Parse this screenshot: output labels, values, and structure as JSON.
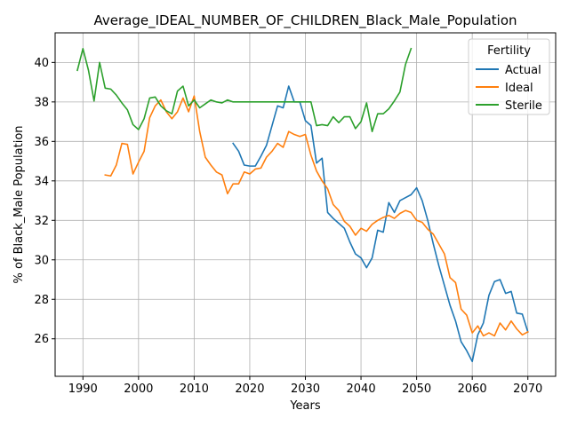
{
  "chart_data": {
    "type": "line",
    "title": "Average_IDEAL_NUMBER_OF_CHILDREN_Black_Male_Population",
    "xlabel": "Years",
    "ylabel": "% of Black_Male Population",
    "xlim": [
      1985,
      2075
    ],
    "ylim": [
      24.1,
      41.5
    ],
    "xticks": [
      1990,
      2000,
      2010,
      2020,
      2030,
      2040,
      2050,
      2060,
      2070
    ],
    "yticks": [
      26,
      28,
      30,
      32,
      34,
      36,
      38,
      40
    ],
    "grid": true,
    "legend": {
      "title": "Fertility",
      "placement": "top-right"
    },
    "series": [
      {
        "name": "Actual",
        "color": "#1f77b4",
        "x": [
          2017,
          2018,
          2019,
          2020,
          2021,
          2022,
          2023,
          2024,
          2025,
          2026,
          2027,
          2028,
          2029,
          2030,
          2031,
          2032,
          2033,
          2034,
          2035,
          2036,
          2037,
          2038,
          2039,
          2040,
          2041,
          2042,
          2043,
          2044,
          2045,
          2046,
          2047,
          2048,
          2049,
          2050,
          2051,
          2052,
          2053,
          2054,
          2055,
          2056,
          2057,
          2058,
          2059,
          2060,
          2061,
          2062,
          2063,
          2064,
          2065,
          2066,
          2067,
          2068,
          2069,
          2070
        ],
        "y": [
          35.9,
          35.5,
          34.8,
          34.75,
          34.75,
          35.25,
          35.8,
          36.8,
          37.8,
          37.7,
          38.8,
          38.0,
          38.0,
          37.05,
          36.8,
          34.9,
          35.15,
          32.4,
          32.1,
          31.85,
          31.6,
          30.9,
          30.3,
          30.1,
          29.6,
          30.1,
          31.5,
          31.4,
          32.9,
          32.4,
          33.0,
          33.15,
          33.3,
          33.65,
          33.0,
          32.0,
          30.8,
          29.7,
          28.7,
          27.7,
          26.9,
          25.85,
          25.4,
          24.85,
          26.2,
          26.8,
          28.2,
          28.9,
          29.0,
          28.3,
          28.4,
          27.3,
          27.25,
          26.35
        ]
      },
      {
        "name": "Ideal",
        "color": "#ff7f0e",
        "x": [
          1994,
          1995,
          1996,
          1997,
          1998,
          1999,
          2000,
          2001,
          2002,
          2003,
          2004,
          2005,
          2006,
          2007,
          2008,
          2009,
          2010,
          2011,
          2012,
          2013,
          2014,
          2015,
          2016,
          2017,
          2018,
          2019,
          2020,
          2021,
          2022,
          2023,
          2024,
          2025,
          2026,
          2027,
          2028,
          2029,
          2030,
          2031,
          2032,
          2033,
          2034,
          2035,
          2036,
          2037,
          2038,
          2039,
          2040,
          2041,
          2042,
          2043,
          2044,
          2045,
          2046,
          2047,
          2048,
          2049,
          2050,
          2051,
          2052,
          2053,
          2054,
          2055,
          2056,
          2057,
          2058,
          2059,
          2060,
          2061,
          2062,
          2063,
          2064,
          2065,
          2066,
          2067,
          2068,
          2069,
          2070
        ],
        "y": [
          34.3,
          34.25,
          34.8,
          35.9,
          35.85,
          34.35,
          34.95,
          35.5,
          37.2,
          37.8,
          38.1,
          37.5,
          37.15,
          37.5,
          38.2,
          37.5,
          38.3,
          36.5,
          35.2,
          34.8,
          34.45,
          34.3,
          33.35,
          33.85,
          33.85,
          34.45,
          34.35,
          34.6,
          34.65,
          35.2,
          35.5,
          35.9,
          35.7,
          36.5,
          36.35,
          36.25,
          36.35,
          35.3,
          34.5,
          34.0,
          33.6,
          32.8,
          32.5,
          31.95,
          31.7,
          31.25,
          31.6,
          31.45,
          31.8,
          32.0,
          32.15,
          32.25,
          32.1,
          32.35,
          32.5,
          32.4,
          32.0,
          31.9,
          31.55,
          31.3,
          30.8,
          30.3,
          29.1,
          28.85,
          27.5,
          27.2,
          26.3,
          26.65,
          26.15,
          26.3,
          26.15,
          26.8,
          26.45,
          26.9,
          26.5,
          26.2,
          26.35
        ]
      },
      {
        "name": "Sterile",
        "color": "#2ca02c",
        "x": [
          1989,
          1990,
          1991,
          1992,
          1993,
          1994,
          1995,
          1996,
          1997,
          1998,
          1999,
          2000,
          2001,
          2002,
          2003,
          2004,
          2005,
          2006,
          2007,
          2008,
          2009,
          2010,
          2011,
          2012,
          2013,
          2014,
          2015,
          2016,
          2017,
          2018,
          2019,
          2020,
          2021,
          2022,
          2023,
          2024,
          2025,
          2026,
          2027,
          2028,
          2029,
          2030,
          2031,
          2032,
          2033,
          2034,
          2035,
          2036,
          2037,
          2038,
          2039,
          2040,
          2041,
          2042,
          2043,
          2044,
          2045,
          2046,
          2047,
          2048,
          2049
        ],
        "y": [
          39.6,
          40.7,
          39.6,
          38.05,
          40.0,
          38.7,
          38.65,
          38.35,
          37.95,
          37.6,
          36.85,
          36.6,
          37.15,
          38.2,
          38.25,
          37.8,
          37.55,
          37.4,
          38.55,
          38.8,
          37.8,
          38.1,
          37.7,
          37.9,
          38.1,
          38.0,
          37.95,
          38.1,
          38.0,
          38.0,
          38.0,
          38.0,
          38.0,
          38.0,
          38.0,
          38.0,
          38.0,
          38.0,
          38.0,
          38.0,
          38.0,
          38.0,
          38.0,
          36.8,
          36.85,
          36.8,
          37.25,
          36.95,
          37.25,
          37.25,
          36.65,
          37.0,
          37.95,
          36.5,
          37.4,
          37.4,
          37.65,
          38.05,
          38.5,
          39.9,
          40.7
        ]
      }
    ]
  }
}
